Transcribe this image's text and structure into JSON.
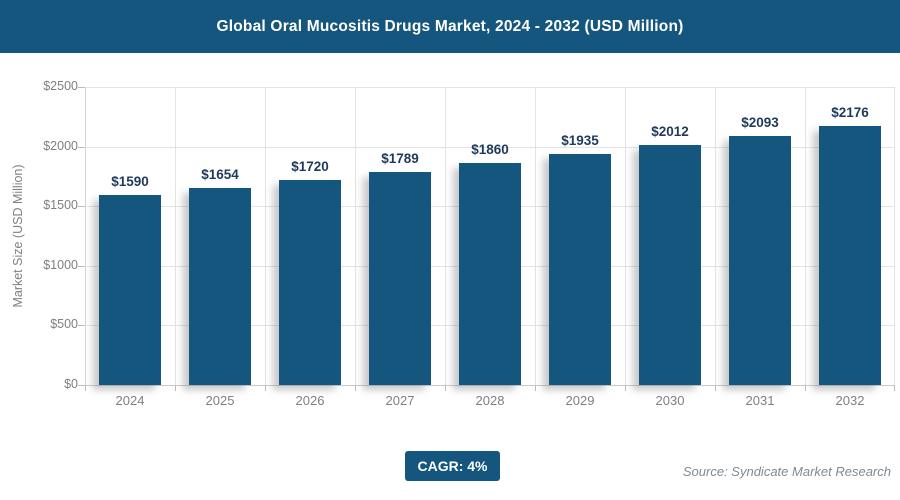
{
  "header": {
    "title": "Global Oral Mucositis Drugs Market, 2024 - 2032 (USD Million)",
    "bg_color": "#14567D"
  },
  "chart_data": {
    "type": "bar",
    "title": "Global Oral Mucositis Drugs Market, 2024 - 2032 (USD Million)",
    "categories": [
      "2024",
      "2025",
      "2026",
      "2027",
      "2028",
      "2029",
      "2030",
      "2031",
      "2032"
    ],
    "values": [
      1590,
      1654,
      1720,
      1789,
      1860,
      1935,
      2012,
      2093,
      2176
    ],
    "value_labels": [
      "$1590",
      "$1654",
      "$1720",
      "$1789",
      "$1860",
      "$1935",
      "$2012",
      "$2093",
      "$2176"
    ],
    "xlabel": "",
    "ylabel": "Market Size (USD Million)",
    "ylim": [
      0,
      2500
    ],
    "y_tick_values": [
      0,
      500,
      1000,
      1500,
      2000,
      2500
    ],
    "y_tick_labels": [
      "$0",
      "$500",
      "$1000",
      "$1500",
      "$2000",
      "$2500"
    ],
    "grid": "both",
    "legend": "none",
    "bar_color": "#14567D",
    "value_label_color": "#1F3A5C",
    "tick_label_color": "#7f7f7f",
    "gridline_color": "#e3e3e3"
  },
  "footer": {
    "cagr_label": "CAGR: 4%",
    "source": "Source: Syndicate Market Research"
  }
}
